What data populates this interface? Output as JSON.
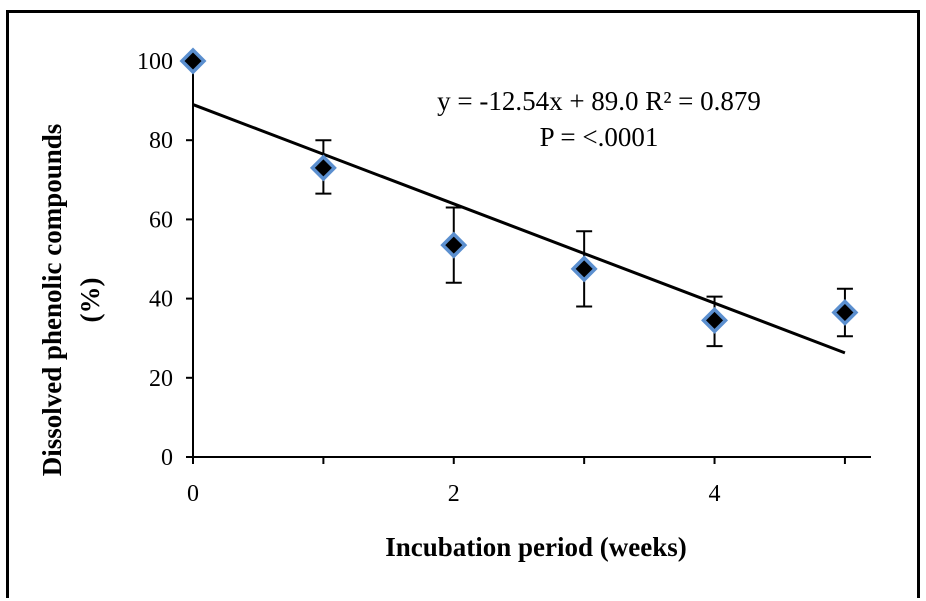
{
  "chart_data": {
    "type": "scatter",
    "xlabel": "Incubation period (weeks)",
    "ylabel_lines": [
      "Dissolved phenolic compounds",
      "(%)"
    ],
    "xlim": [
      0,
      5.2
    ],
    "ylim": [
      0,
      100
    ],
    "x_ticks": [
      0,
      2,
      4
    ],
    "y_ticks": [
      0,
      20,
      40,
      60,
      80,
      100
    ],
    "grid": false,
    "legend": "none",
    "series": [
      {
        "x": [
          0,
          1,
          2,
          3,
          4,
          5
        ],
        "y": [
          100,
          73,
          53.5,
          47.5,
          34.5,
          36.5
        ],
        "error_low": [
          null,
          66.5,
          44,
          38,
          28,
          30.5
        ],
        "error_high": [
          null,
          80,
          63,
          57,
          40.5,
          42.5
        ],
        "marker": "diamond",
        "marker_fill": "#000000",
        "marker_edge": "#5b8fcf"
      }
    ],
    "trendline": {
      "slope": -12.54,
      "intercept": 89.0,
      "x_range": [
        0,
        5
      ]
    },
    "annotations": [
      "y = -12.54x + 89.0 R² = 0.879",
      "P = <.0001"
    ]
  }
}
